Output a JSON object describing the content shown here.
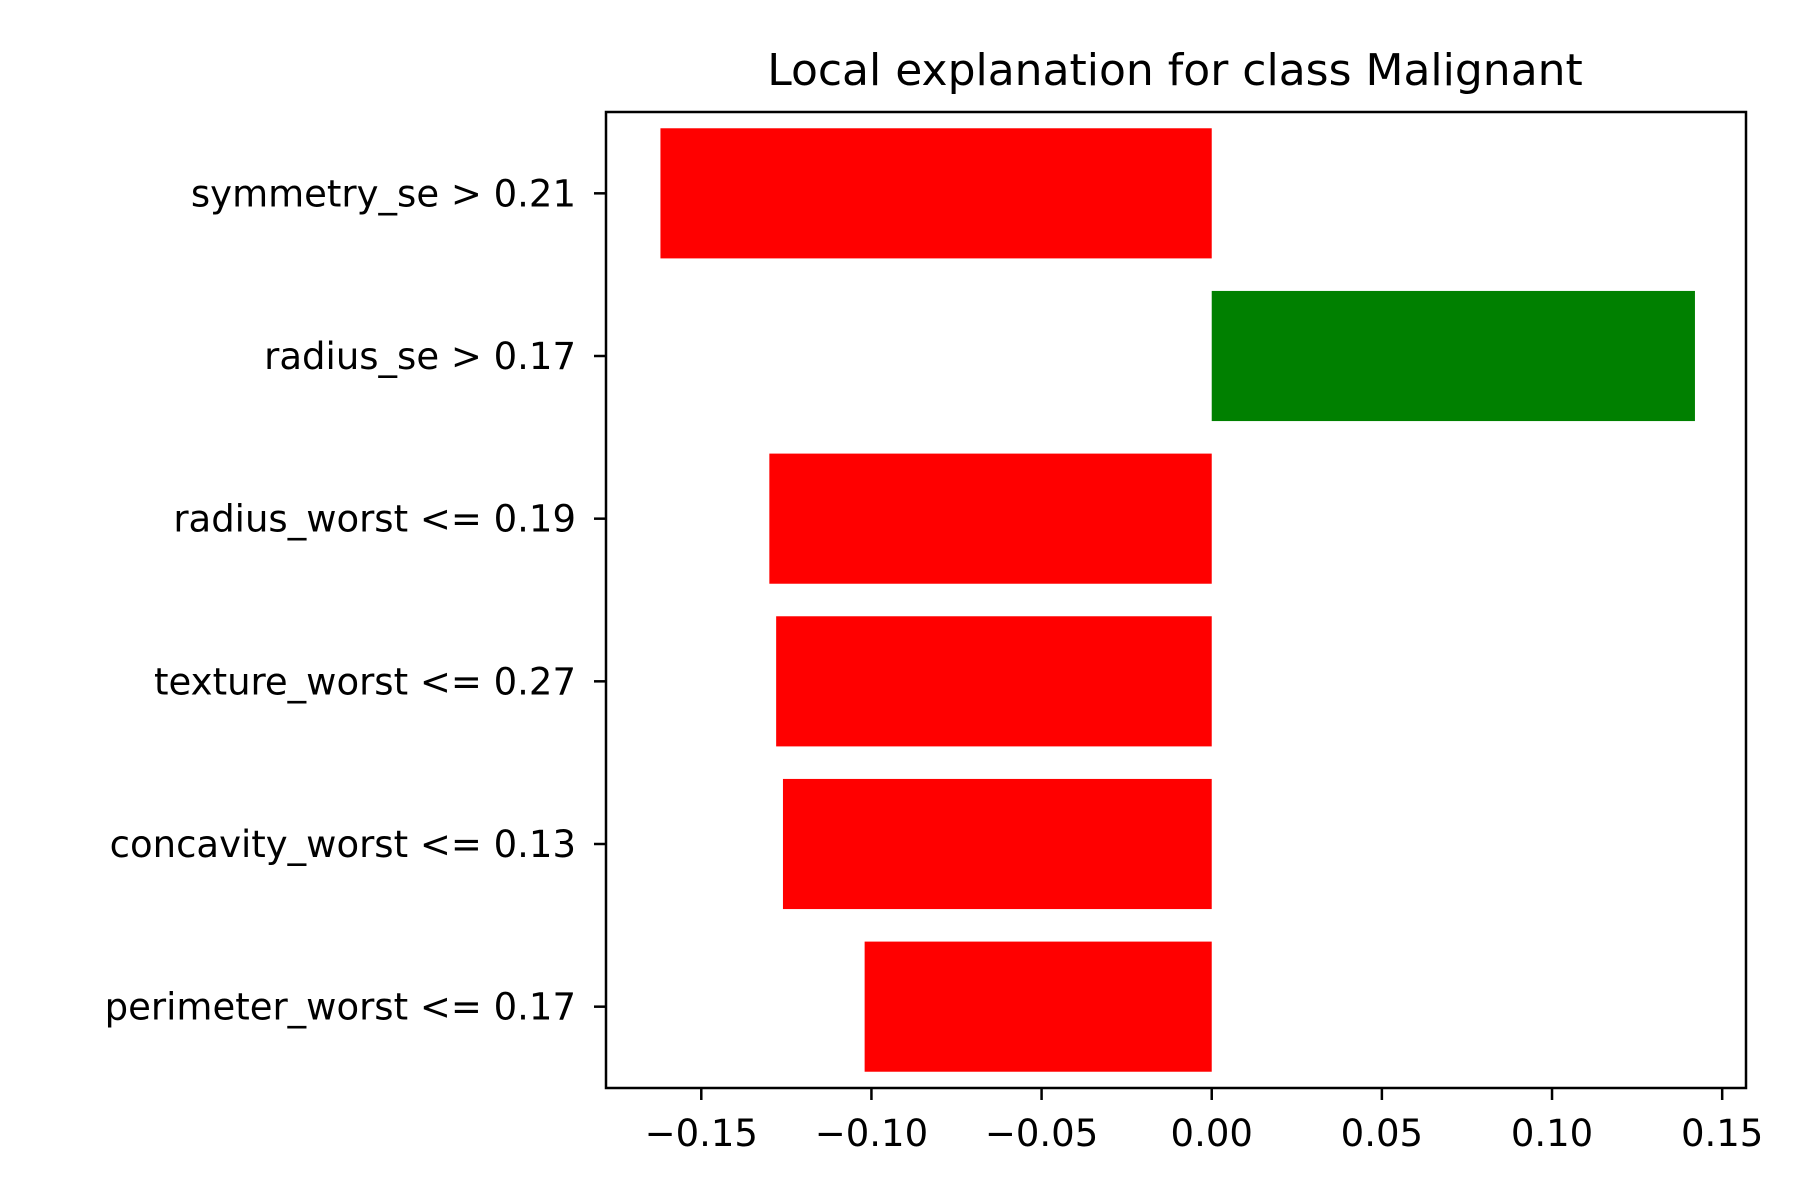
{
  "chart_data": {
    "type": "bar",
    "orientation": "horizontal",
    "title": "Local explanation for class Malignant",
    "xlabel": "",
    "ylabel": "",
    "categories": [
      "symmetry_se > 0.21",
      "radius_se > 0.17",
      "radius_worst <= 0.19",
      "texture_worst <= 0.27",
      "concavity_worst <= 0.13",
      "perimeter_worst <= 0.17"
    ],
    "values": [
      -0.162,
      0.142,
      -0.13,
      -0.128,
      -0.126,
      -0.102
    ],
    "xlim": [
      -0.178,
      0.157
    ],
    "xticks": [
      {
        "value": -0.15,
        "label": "−0.15"
      },
      {
        "value": -0.1,
        "label": "−0.10"
      },
      {
        "value": -0.05,
        "label": "−0.05"
      },
      {
        "value": 0.0,
        "label": "0.00"
      },
      {
        "value": 0.05,
        "label": "0.05"
      },
      {
        "value": 0.1,
        "label": "0.10"
      },
      {
        "value": 0.15,
        "label": "0.15"
      }
    ],
    "grid": false,
    "legend": "none",
    "colors": {
      "positive": "#008000",
      "negative": "#ff0000"
    }
  }
}
